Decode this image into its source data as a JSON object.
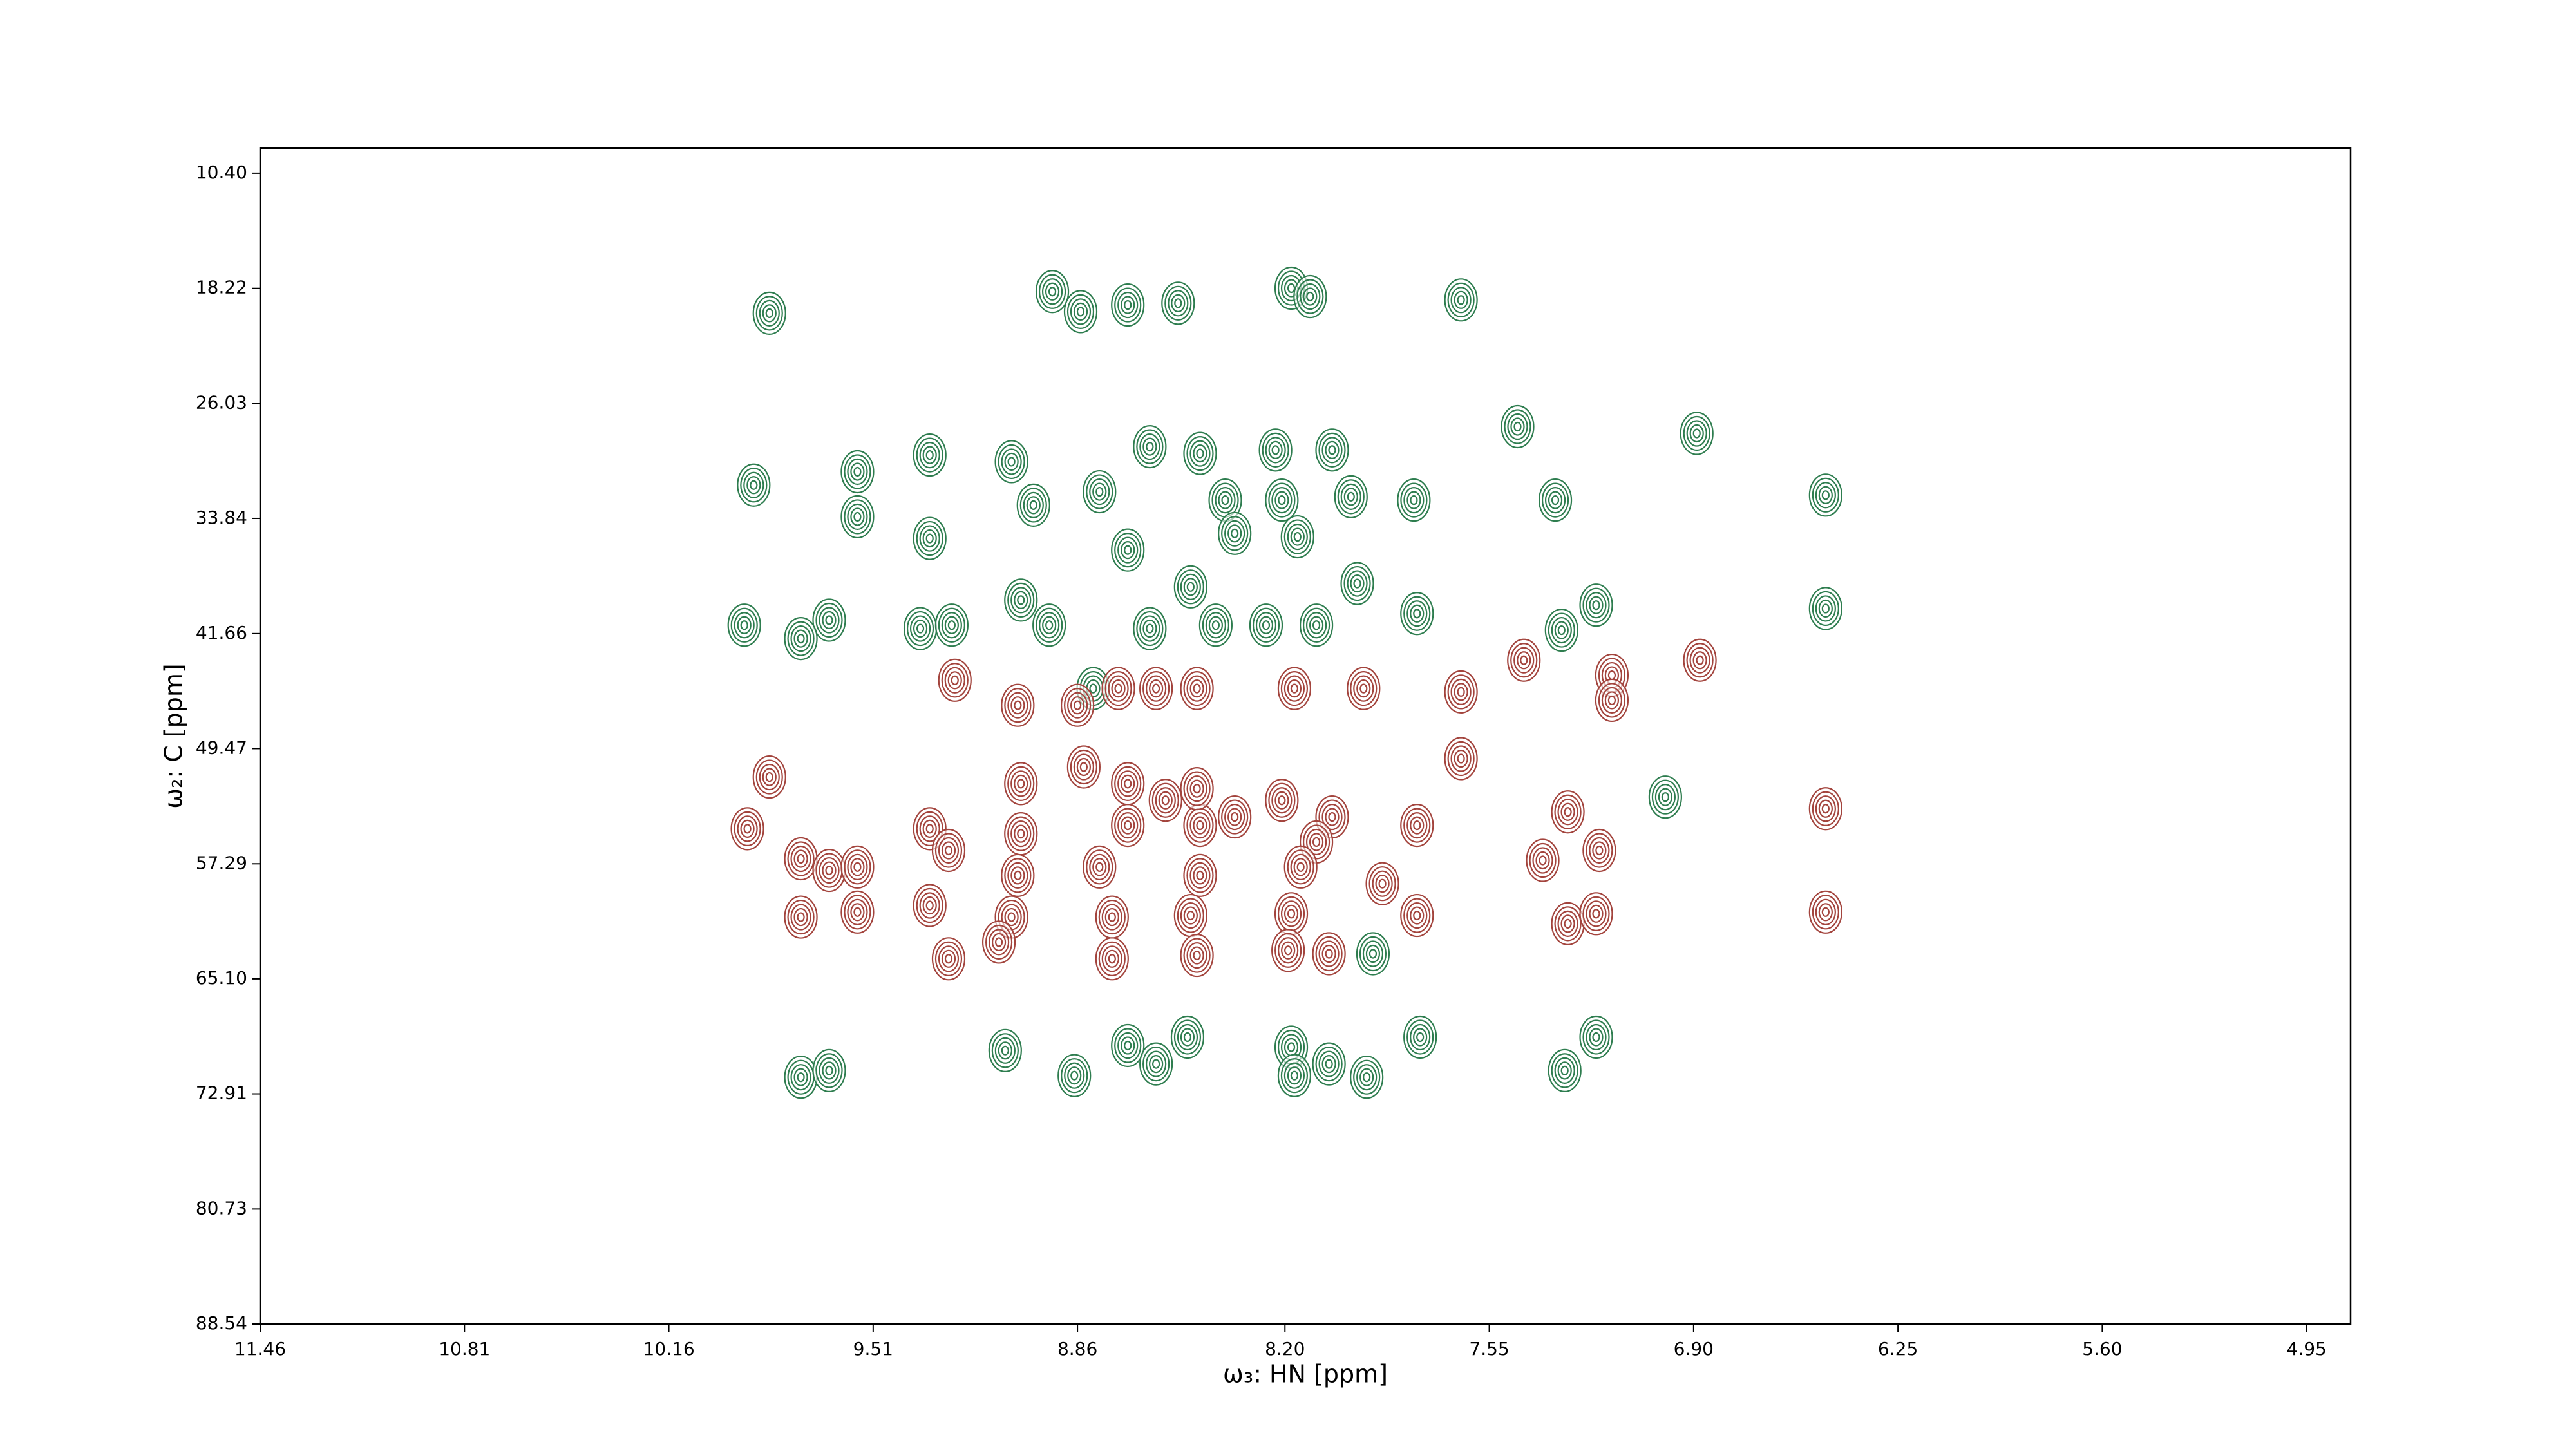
{
  "chart_data": {
    "type": "contour",
    "xlabel": "ω₃: HN [ppm]",
    "ylabel": "ω₂: C [ppm]",
    "xlim": [
      11.46,
      4.81
    ],
    "ylim": [
      88.54,
      8.7
    ],
    "xticks": [
      11.46,
      10.81,
      10.16,
      9.51,
      8.86,
      {
        "value": 8.2,
        "label": "8.20"
      },
      7.55,
      {
        "value": 6.9,
        "label": "6.90"
      },
      6.25,
      {
        "value": 5.6,
        "label": "5.60"
      },
      4.95
    ],
    "yticks": [
      {
        "value": 10.4,
        "label": "10.40"
      },
      18.22,
      26.03,
      33.84,
      41.66,
      49.47,
      57.29,
      {
        "value": 65.1,
        "label": "65.10"
      },
      72.91,
      80.73,
      88.54
    ],
    "series": [
      {
        "color": "#2e7d4f",
        "x": [
          9.84,
          8.94,
          8.85,
          8.7,
          8.54,
          8.18,
          8.12,
          7.64,
          7.46,
          6.89,
          9.89,
          9.56,
          9.33,
          9.07,
          9.0,
          8.79,
          8.63,
          8.47,
          8.23,
          8.05,
          8.39,
          8.21,
          7.99,
          7.79,
          9.56,
          9.33,
          8.7,
          8.36,
          8.16,
          7.34,
          6.48,
          9.04,
          8.95,
          8.63,
          8.42,
          8.26,
          8.1,
          7.78,
          7.97,
          8.5,
          9.36,
          9.26,
          9.65,
          9.74,
          9.92,
          7.21,
          7.32,
          6.48,
          8.81,
          9.09,
          8.87,
          8.7,
          8.61,
          8.51,
          8.18,
          8.17,
          8.06,
          7.94,
          7.77,
          7.31,
          7.21,
          9.74,
          9.65,
          7.92,
          6.99
        ],
        "y": [
          19.91,
          18.44,
          19.8,
          19.35,
          19.23,
          18.21,
          18.78,
          19.01,
          27.61,
          28.07,
          31.58,
          30.67,
          29.54,
          29.99,
          32.94,
          32.03,
          28.97,
          29.43,
          29.2,
          29.2,
          32.6,
          32.6,
          32.37,
          32.6,
          33.73,
          35.2,
          35.99,
          34.86,
          35.09,
          32.6,
          32.26,
          39.39,
          41.09,
          41.32,
          41.09,
          41.09,
          41.09,
          40.3,
          38.26,
          38.49,
          41.32,
          41.09,
          40.75,
          42.0,
          41.09,
          39.73,
          41.43,
          39.96,
          45.39,
          69.97,
          71.67,
          69.63,
          70.88,
          69.06,
          69.74,
          71.67,
          70.88,
          71.78,
          69.06,
          71.33,
          69.06,
          71.78,
          71.33,
          63.4,
          52.76
        ]
      },
      {
        "color": "#a3443d",
        "x": [
          9.84,
          9.91,
          9.74,
          9.65,
          9.56,
          9.74,
          9.56,
          9.33,
          9.33,
          9.27,
          9.27,
          9.05,
          8.86,
          9.25,
          8.73,
          8.61,
          8.48,
          8.17,
          7.95,
          7.64,
          7.44,
          6.88,
          7.16,
          7.16,
          9.04,
          8.84,
          8.7,
          8.58,
          8.36,
          8.21,
          8.05,
          7.78,
          9.04,
          8.7,
          8.47,
          8.1,
          9.05,
          8.79,
          8.47,
          8.15,
          7.89,
          9.07,
          8.75,
          8.5,
          8.18,
          7.78,
          9.11,
          8.75,
          8.48,
          8.19,
          8.06,
          7.64,
          7.3,
          7.38,
          7.2,
          7.3,
          7.21,
          6.48,
          6.48,
          8.48
        ],
        "y": [
          51.4,
          54.91,
          56.95,
          57.74,
          57.51,
          60.91,
          60.57,
          54.91,
          60.12,
          56.38,
          63.74,
          46.53,
          46.53,
          44.83,
          45.39,
          45.39,
          45.39,
          45.39,
          45.39,
          45.62,
          43.47,
          43.47,
          44.49,
          46.19,
          51.85,
          50.72,
          51.85,
          52.98,
          54.11,
          52.98,
          54.11,
          54.68,
          55.25,
          54.68,
          54.68,
          55.81,
          58.08,
          57.51,
          58.08,
          57.51,
          58.64,
          60.91,
          60.91,
          60.8,
          60.68,
          60.8,
          62.61,
          63.74,
          63.51,
          63.17,
          63.4,
          50.15,
          53.77,
          57.06,
          56.38,
          61.36,
          60.68,
          53.55,
          60.57,
          52.19
        ]
      }
    ]
  }
}
